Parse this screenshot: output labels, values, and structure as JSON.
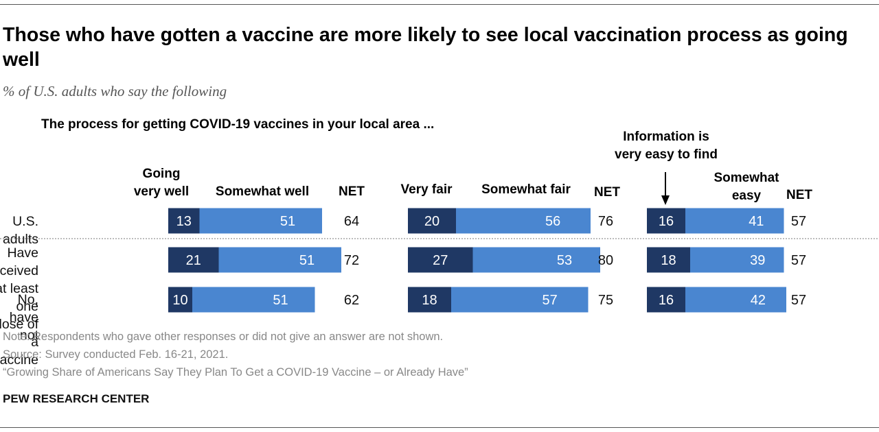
{
  "title": "Those who have gotten a vaccine are more likely to see local vaccination process as going well",
  "subtitle": "% of U.S. adults who say the following",
  "question": "The process for getting COVID-19 vaccines in your local area ...",
  "headers": {
    "g1_dark": [
      "Going",
      "very well"
    ],
    "g1_light": "Somewhat well",
    "g1_net": "NET",
    "g2_dark": "Very fair",
    "g2_light": "Somewhat fair",
    "g2_net": "NET",
    "g3_dark": [
      "Information is",
      "very easy to find"
    ],
    "g3_light": [
      "Somewhat",
      "easy"
    ],
    "g3_net": "NET"
  },
  "rows": [
    {
      "label_lines": [
        "U.S. adults"
      ]
    },
    {
      "label_lines": [
        "Have received at least",
        "one dose of a vaccine"
      ]
    },
    {
      "label_lines": [
        "No, have not"
      ]
    }
  ],
  "colors": {
    "dark": "#1f3864",
    "light": "#4a86d0",
    "text_on_bar": "#ffffff"
  },
  "chart_data": {
    "type": "bar",
    "orientation": "horizontal",
    "stacked": true,
    "categories": [
      "U.S. adults",
      "Have received at least one dose of a vaccine",
      "No, have not"
    ],
    "groups": [
      {
        "name": "Going well",
        "series": [
          {
            "name": "Going very well",
            "values": [
              13,
              21,
              10
            ]
          },
          {
            "name": "Somewhat well",
            "values": [
              51,
              51,
              51
            ]
          }
        ],
        "net": [
          64,
          72,
          62
        ]
      },
      {
        "name": "Fair",
        "series": [
          {
            "name": "Very fair",
            "values": [
              20,
              27,
              18
            ]
          },
          {
            "name": "Somewhat fair",
            "values": [
              56,
              53,
              57
            ]
          }
        ],
        "net": [
          76,
          80,
          75
        ]
      },
      {
        "name": "Information easy to find",
        "series": [
          {
            "name": "Information is very easy to find",
            "values": [
              16,
              18,
              16
            ]
          },
          {
            "name": "Somewhat easy",
            "values": [
              41,
              39,
              42
            ]
          }
        ],
        "net": [
          57,
          57,
          57
        ]
      }
    ]
  },
  "footer": {
    "note": "Note: Respondents who gave other responses or did not give an answer are not shown.",
    "source": "Source: Survey conducted Feb. 16-21, 2021.",
    "report": "“Growing Share of Americans Say They Plan To Get a COVID-19 Vaccine – or Already Have”",
    "brand": "PEW RESEARCH CENTER"
  }
}
